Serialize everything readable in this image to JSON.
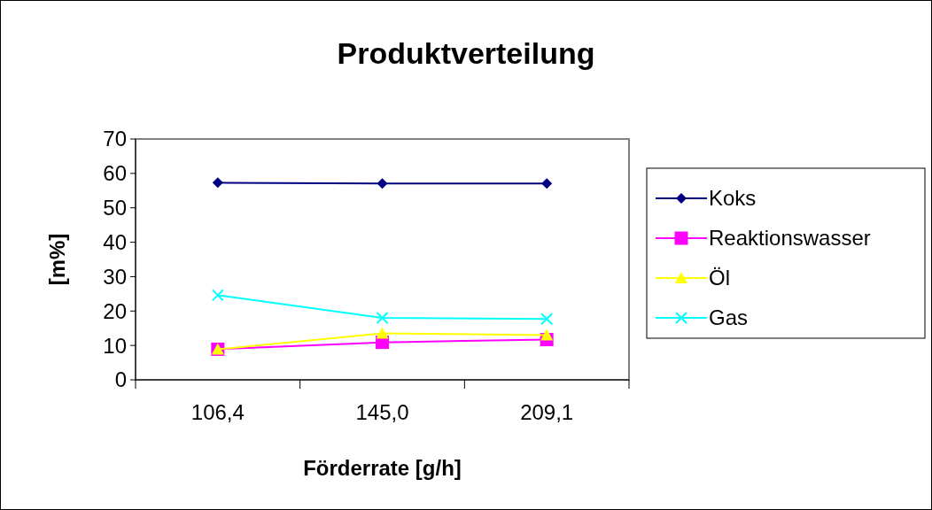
{
  "chart_data": {
    "type": "line",
    "title": "Produktverteilung",
    "xlabel": "Förderrate [g/h]",
    "ylabel": "[m%]",
    "categories": [
      "106,4",
      "145,0",
      "209,1"
    ],
    "series": [
      {
        "name": "Koks",
        "color": "#000080",
        "marker": "diamond",
        "values": [
          57.3,
          57.1,
          57.1
        ]
      },
      {
        "name": "Reaktionswasser",
        "color": "#ff00ff",
        "marker": "square",
        "values": [
          8.9,
          10.9,
          11.7
        ]
      },
      {
        "name": "Öl",
        "color": "#ffff00",
        "marker": "triangle",
        "values": [
          8.9,
          13.5,
          13.0
        ]
      },
      {
        "name": "Gas",
        "color": "#00ffff",
        "marker": "cross",
        "values": [
          24.6,
          18.0,
          17.7
        ]
      }
    ],
    "ylim": [
      0,
      70
    ],
    "yticks": [
      0,
      10,
      20,
      30,
      40,
      50,
      60,
      70
    ],
    "grid": false,
    "legend": "right"
  }
}
